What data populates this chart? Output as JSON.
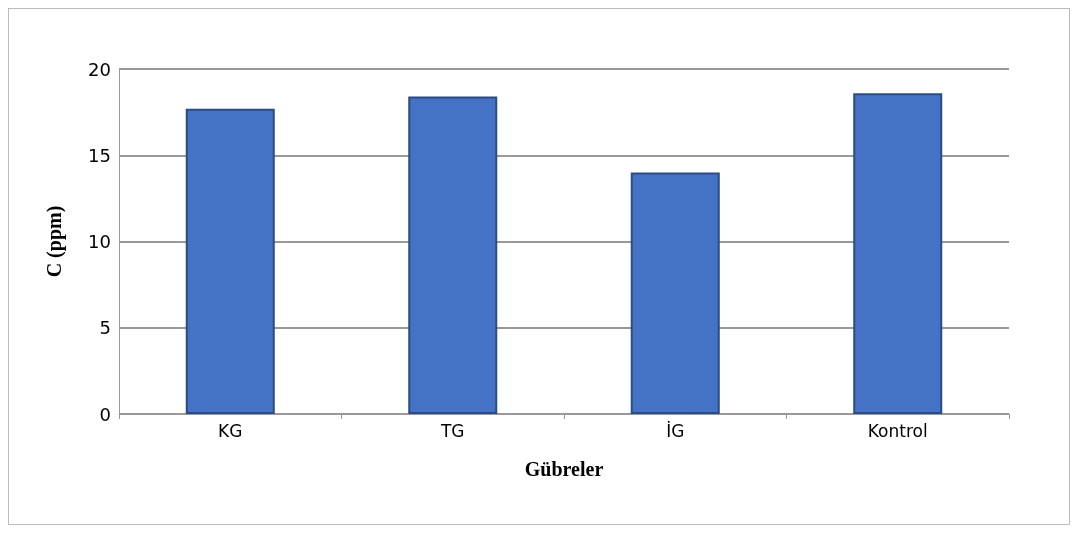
{
  "chart_data": {
    "type": "bar",
    "xlabel": "Gübreler",
    "ylabel": "C (ppm)",
    "categories": [
      "KG",
      "TG",
      "İG",
      "Kontrol"
    ],
    "values": [
      17.7,
      18.4,
      14.0,
      18.6
    ],
    "color": "#4472c4",
    "ylim": [
      0,
      20
    ],
    "yticks": [
      0,
      5,
      10,
      15,
      20
    ],
    "grid": "y"
  }
}
